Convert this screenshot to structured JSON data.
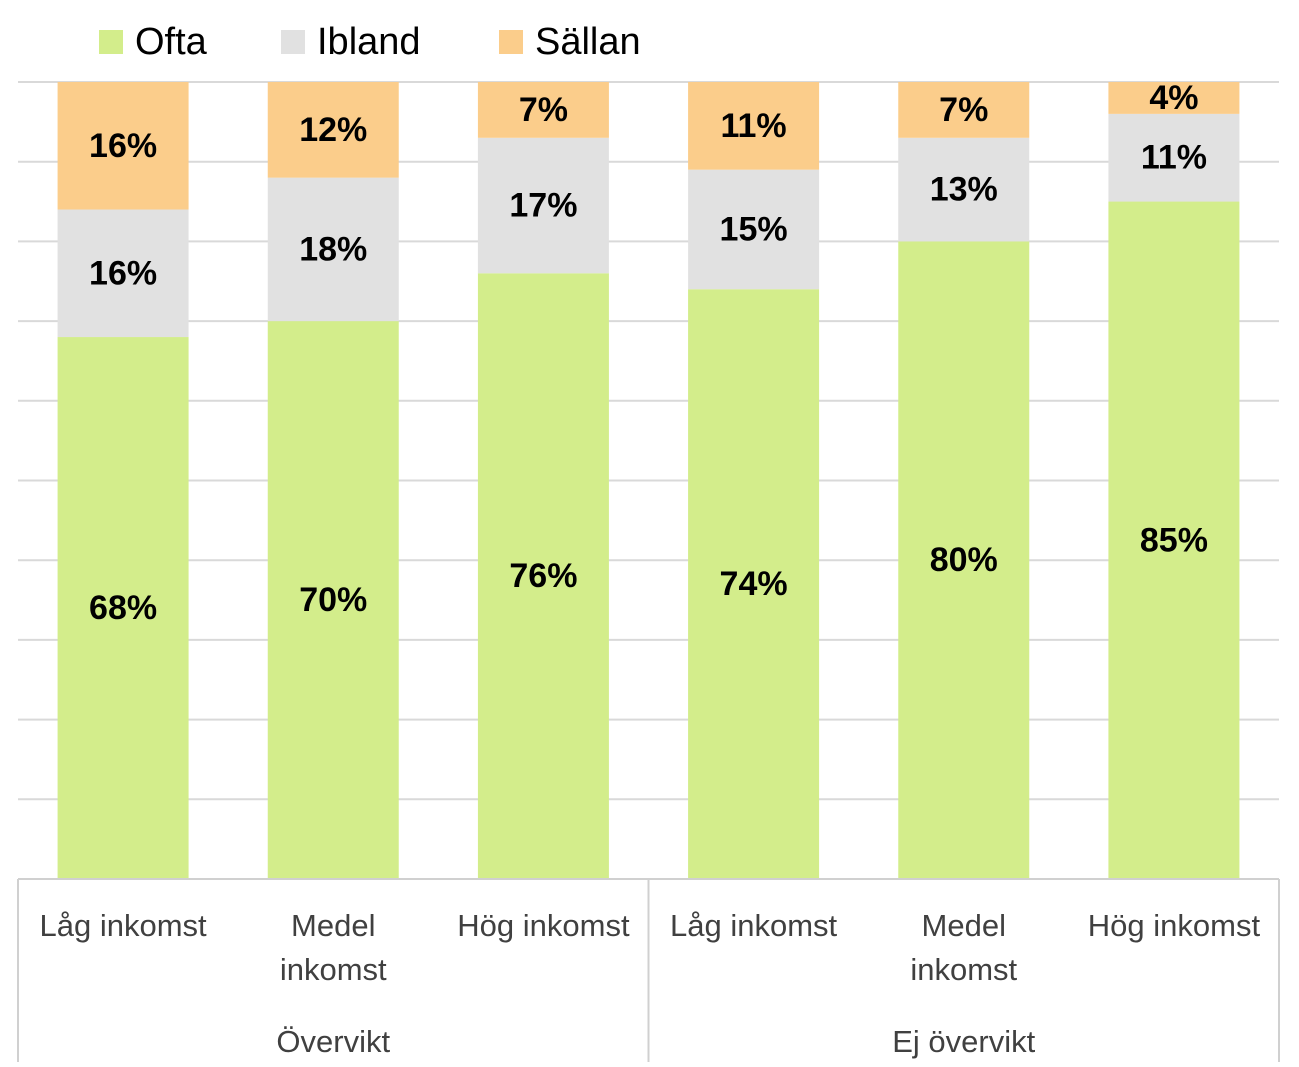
{
  "chart_data": {
    "type": "bar",
    "stacked": true,
    "categories": [
      "Låg  inkomst",
      "Medel inkomst",
      "Hög inkomst",
      "Låg   inkomst",
      "Medel inkomst",
      "Hög inkomst"
    ],
    "category_lines": [
      [
        "Låg  inkomst"
      ],
      [
        "Medel",
        "inkomst"
      ],
      [
        "Hög inkomst"
      ],
      [
        "Låg   inkomst"
      ],
      [
        "Medel",
        "inkomst"
      ],
      [
        "Hög inkomst"
      ]
    ],
    "groups": [
      {
        "label": "Övervikt",
        "categories": [
          0,
          1,
          2
        ]
      },
      {
        "label": "Ej övervikt",
        "categories": [
          3,
          4,
          5
        ]
      }
    ],
    "series": [
      {
        "name": "Ofta",
        "color": "#d3ed8b",
        "values": [
          68,
          70,
          76,
          74,
          80,
          85
        ],
        "labels": [
          "68%",
          "70%",
          "76%",
          "74%",
          "80%",
          "85%"
        ]
      },
      {
        "name": "Ibland",
        "color": "#e1e1e1",
        "values": [
          16,
          18,
          17,
          15,
          13,
          11
        ],
        "labels": [
          "16%",
          "18%",
          "17%",
          "15%",
          "13%",
          "11%"
        ]
      },
      {
        "name": "Sällan",
        "color": "#fbcd8b",
        "values": [
          16,
          12,
          7,
          11,
          7,
          4
        ],
        "labels": [
          "16%",
          "12%",
          "7%",
          "11%",
          "7%",
          "4%"
        ]
      }
    ],
    "ylim": [
      0,
      100
    ],
    "grid": true,
    "legend_position": "top-left",
    "title": "",
    "xlabel": "",
    "ylabel": ""
  }
}
